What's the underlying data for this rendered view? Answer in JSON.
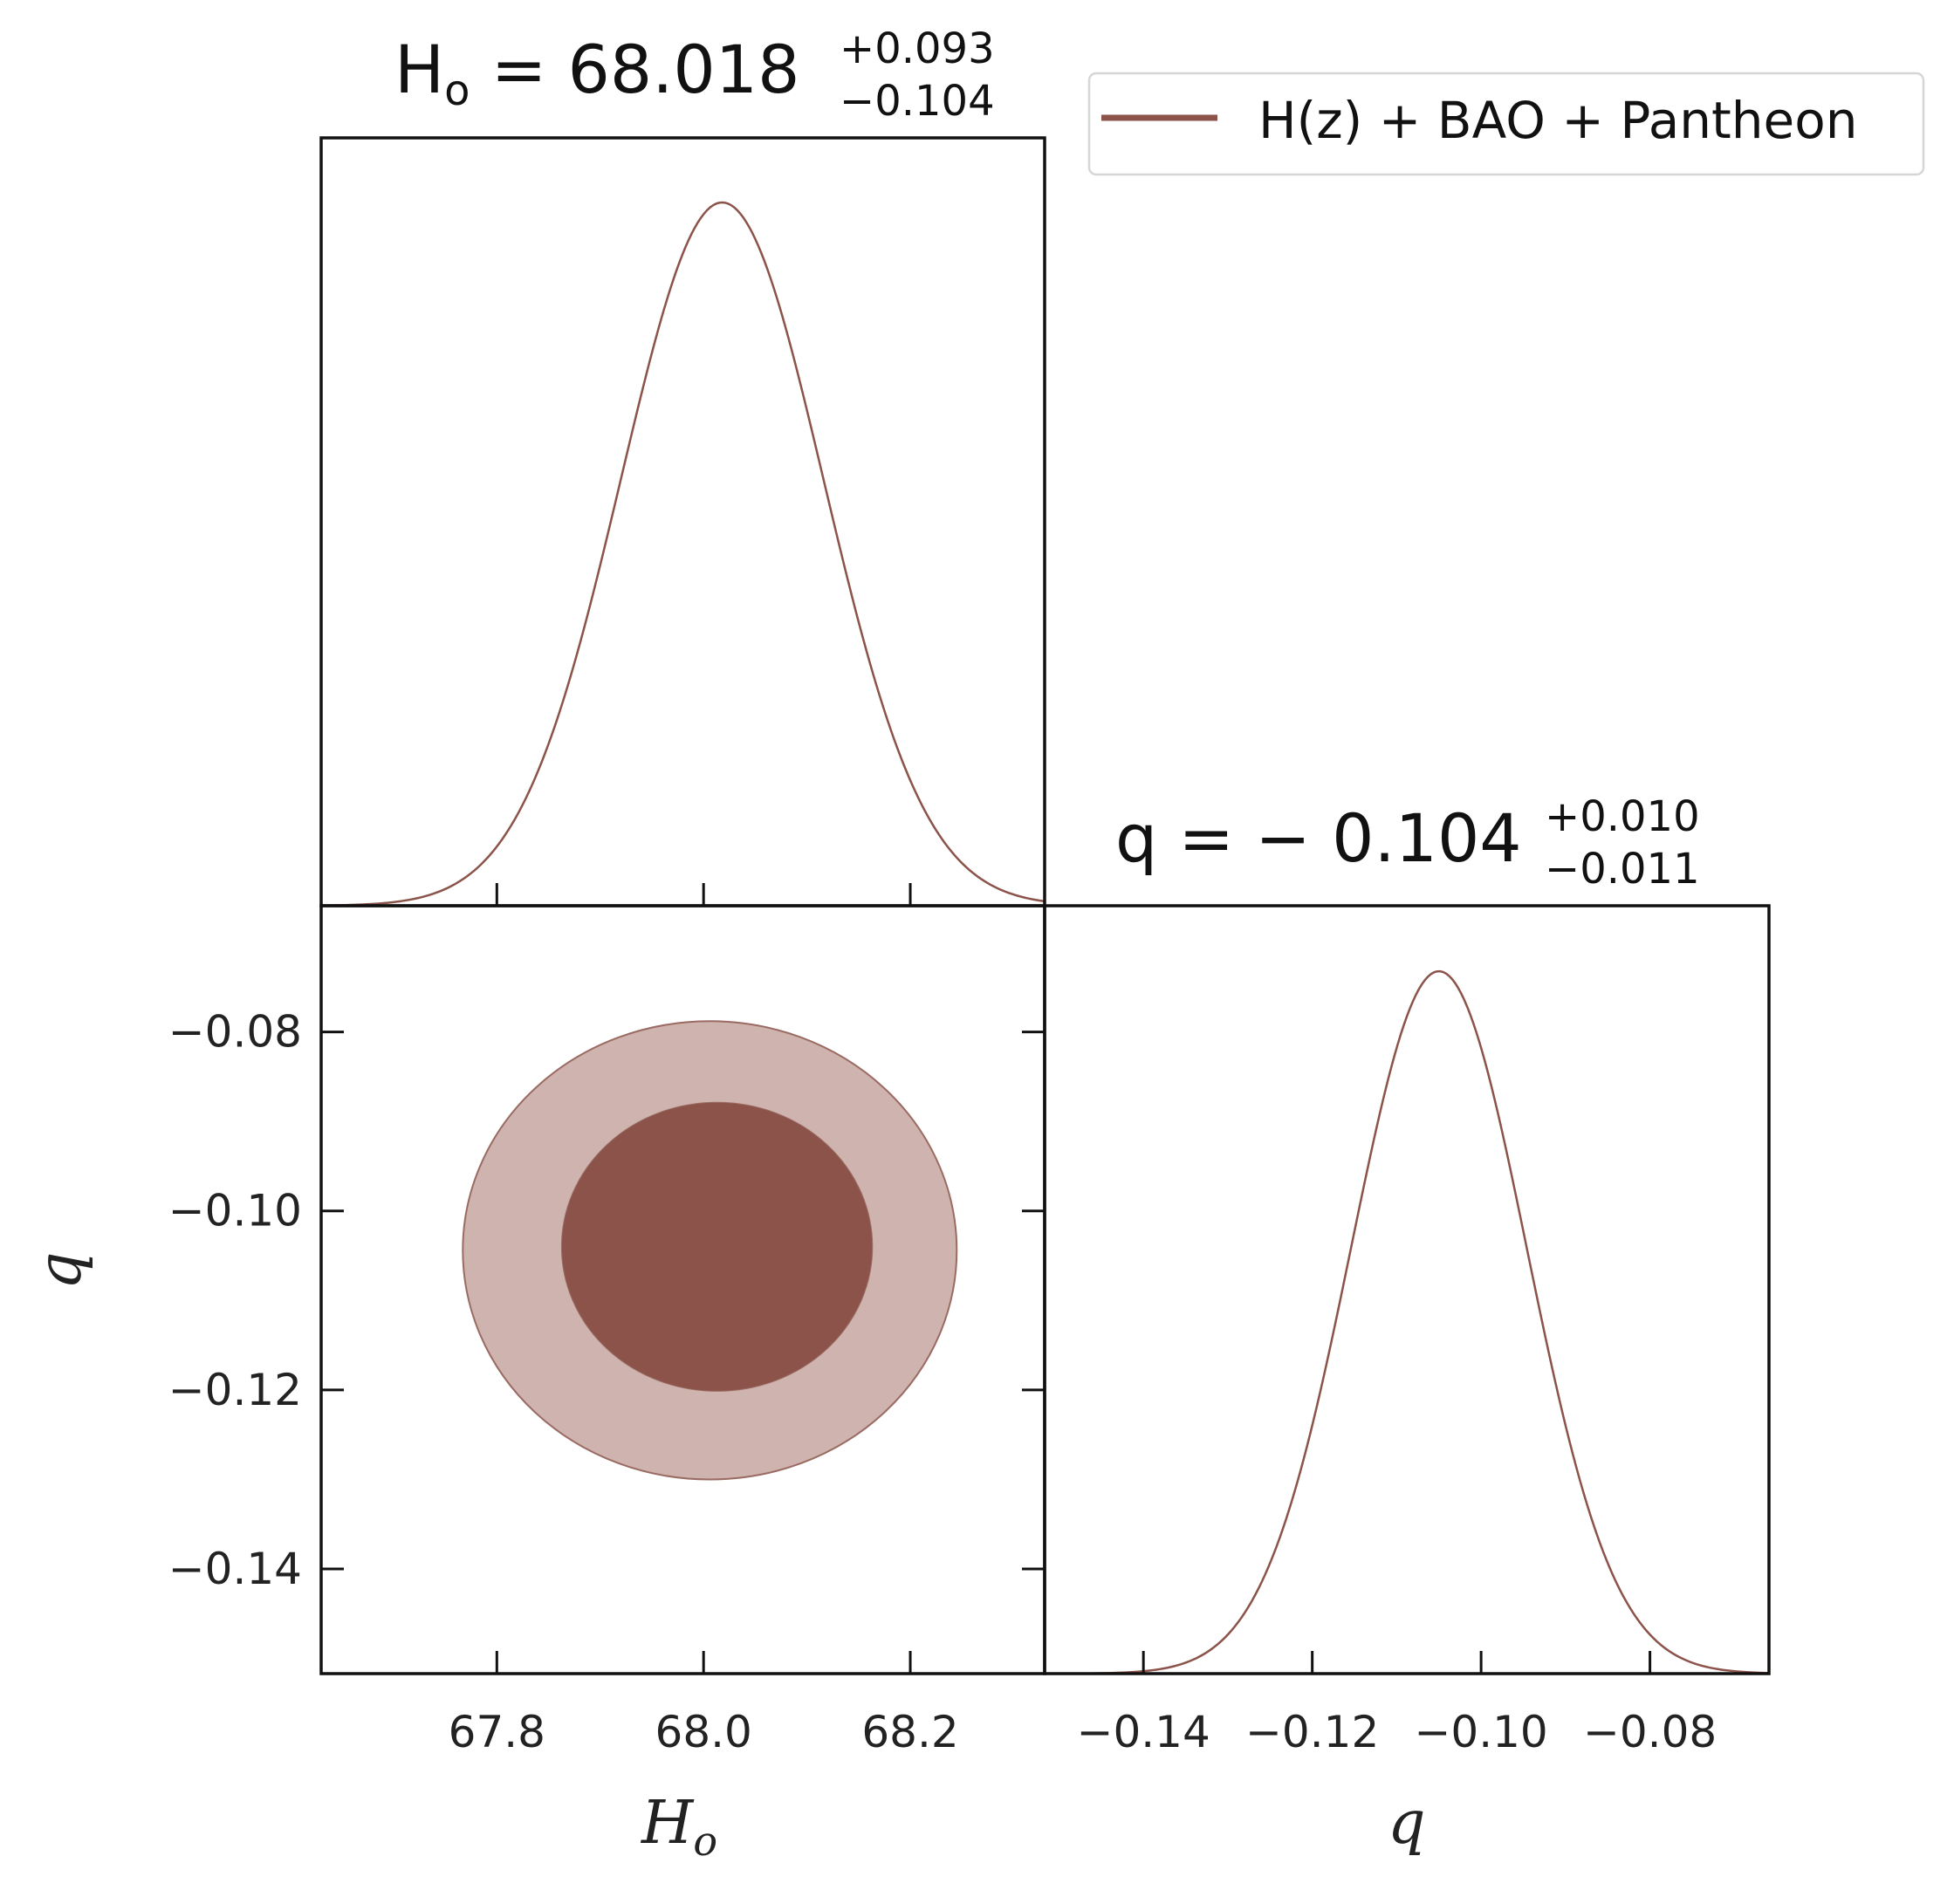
{
  "colors": {
    "series": "#8b5349",
    "contour_1sigma": "#8b5349",
    "contour_2sigma": "#cfb3ae",
    "contour_edge": "#9a6b62",
    "axis": "#111111"
  },
  "legend": {
    "label": "H(z) + BAO + Pantheon",
    "placement": "top-right"
  },
  "titles": {
    "h0": {
      "lhs": "H",
      "lhs_sub": "o",
      "eq": " = 68.018",
      "upper": "+0.093",
      "lower": "−0.104"
    },
    "q": {
      "lhs": "q",
      "eq": " = − 0.104",
      "upper": "+0.010",
      "lower": "−0.011"
    }
  },
  "axes": {
    "h0_xlabel": {
      "main": "H",
      "sub": "o"
    },
    "q_xlabel": "q",
    "q_ylabel": "q"
  },
  "chart_data": [
    {
      "type": "line",
      "panel": "H0 marginal posterior",
      "xlim": [
        67.63,
        68.33
      ],
      "x_ticks": [
        "67.8",
        "68.0",
        "68.2"
      ],
      "x_tick_values": [
        67.8,
        68.0,
        68.2
      ],
      "series": [
        {
          "name": "H(z) + BAO + Pantheon",
          "distribution": "gaussian",
          "mean": 68.018,
          "sigma": 0.098
        }
      ],
      "grid": false
    },
    {
      "type": "area",
      "panel": "H0 vs q joint posterior",
      "xlim": [
        67.63,
        68.33
      ],
      "ylim": [
        -0.1517,
        -0.0659
      ],
      "x_ticks": [
        "67.8",
        "68.0",
        "68.2"
      ],
      "x_tick_values": [
        67.8,
        68.0,
        68.2
      ],
      "y_ticks": [
        "−0.08",
        "−0.10",
        "−0.12",
        "−0.14"
      ],
      "y_tick_values": [
        -0.08,
        -0.1,
        -0.12,
        -0.14
      ],
      "contours": [
        {
          "level": "2 sigma",
          "center": [
            68.006,
            -0.1044
          ],
          "h0_range": [
            67.767,
            68.245
          ],
          "q_range": [
            -0.1297,
            -0.0785
          ]
        },
        {
          "level": "1 sigma",
          "center": [
            68.013,
            -0.104
          ],
          "h0_range": [
            67.864,
            68.165
          ],
          "q_range": [
            -0.1203,
            -0.088
          ]
        }
      ],
      "grid": false
    },
    {
      "type": "line",
      "panel": "q marginal posterior",
      "xlim": [
        -0.1517,
        -0.0659
      ],
      "x_ticks": [
        "−0.14",
        "−0.12",
        "−0.10",
        "−0.08"
      ],
      "x_tick_values": [
        -0.14,
        -0.12,
        -0.1,
        -0.08
      ],
      "series": [
        {
          "name": "H(z) + BAO + Pantheon",
          "distribution": "gaussian",
          "mean": -0.105,
          "sigma": 0.0104
        }
      ],
      "grid": false
    }
  ]
}
